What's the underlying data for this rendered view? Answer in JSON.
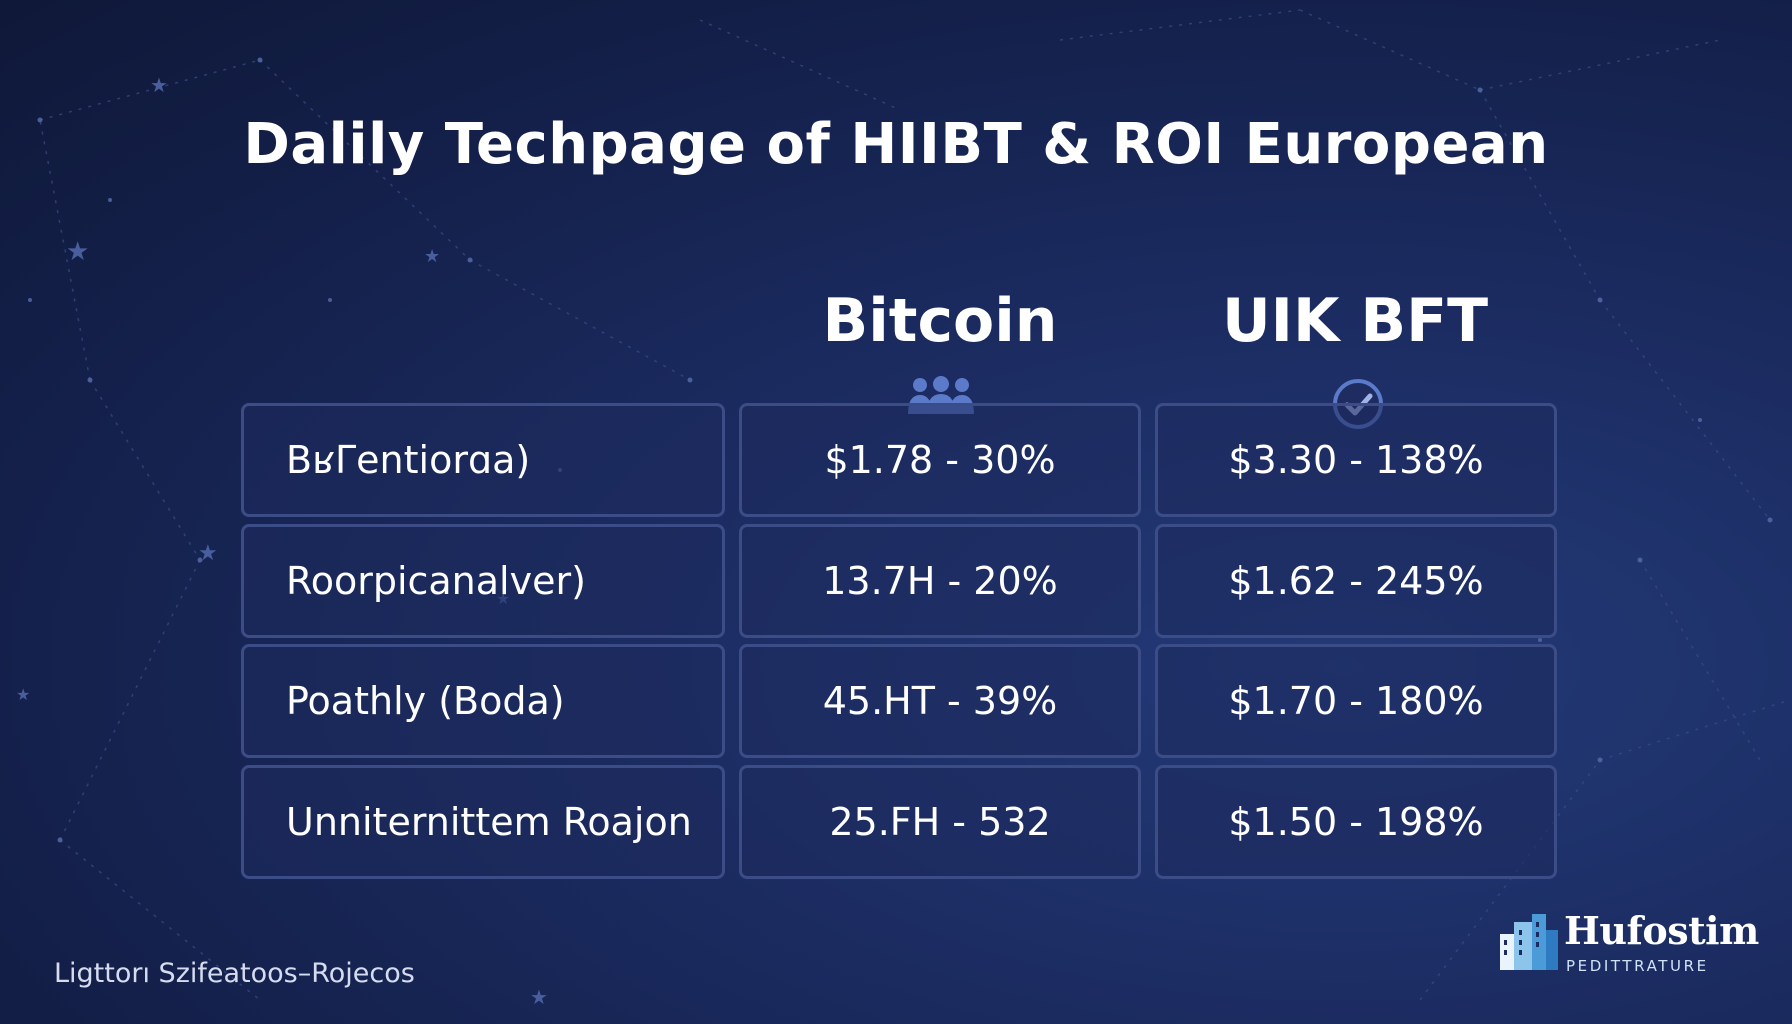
{
  "title": "Dalily Techpage of HIIBT & ROI European",
  "columns": [
    {
      "label": "Bitcoin",
      "icon": "group-icon"
    },
    {
      "label": "UIK BFT",
      "icon": "check-circle-icon"
    }
  ],
  "rows": [
    {
      "label": "BʁΓentiorɑa)",
      "col1": "$1.78 - 30%",
      "col2": "$3.30 - 138%"
    },
    {
      "label": "Roorpicanalver)",
      "col1": "13.7H - 20%",
      "col2": "$1.62 - 245%"
    },
    {
      "label": "Poathly (Boda)",
      "col1": "45.HT - 39%",
      "col2": "$1.70 - 180%"
    },
    {
      "label": "Unniternittem Roajon",
      "col1": "25.FH - 532",
      "col2": "$1.50 - 198%"
    }
  ],
  "footer": {
    "text": "Ligttorı Szifeatoos–Rojecos"
  },
  "logo": {
    "name": "Hufostim",
    "subtitle": "PEDITTRATURE",
    "icon": "buildings-logo-icon"
  },
  "colors": {
    "background": "#1b2b60",
    "cell_border": "#3b4c86",
    "icon_accent": "#5b7ac9"
  }
}
